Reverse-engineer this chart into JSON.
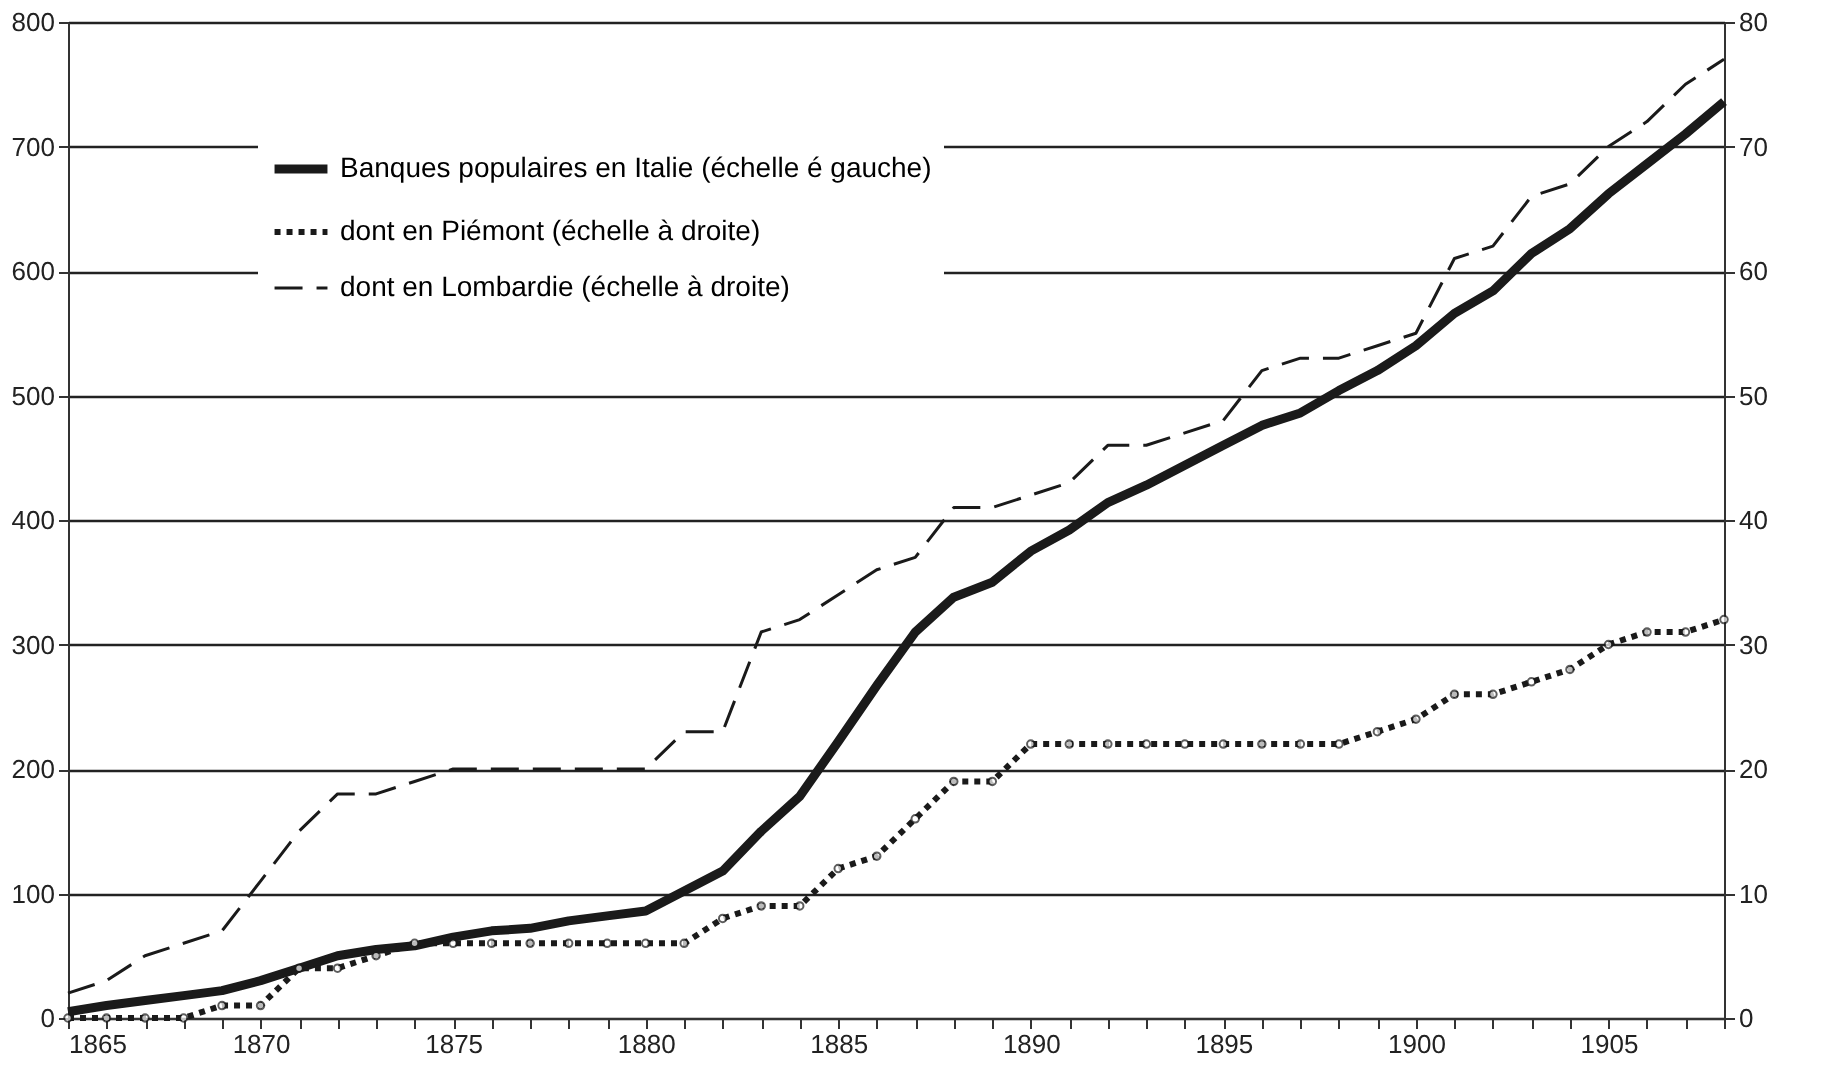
{
  "chart_data": {
    "type": "line",
    "x": [
      1865,
      1866,
      1867,
      1868,
      1869,
      1870,
      1871,
      1872,
      1873,
      1874,
      1875,
      1876,
      1877,
      1878,
      1879,
      1880,
      1881,
      1882,
      1883,
      1884,
      1885,
      1886,
      1887,
      1888,
      1889,
      1890,
      1891,
      1892,
      1893,
      1894,
      1895,
      1896,
      1897,
      1898,
      1899,
      1900,
      1901,
      1902,
      1903,
      1904,
      1905,
      1906,
      1907,
      1908
    ],
    "series": [
      {
        "name": "Banques populaires en Italie (échelle é gauche)",
        "color": "#1a1a1a",
        "line_style": "solid",
        "marker": "none",
        "values": [
          5,
          10,
          14,
          18,
          22,
          30,
          40,
          50,
          55,
          58,
          65,
          70,
          72,
          78,
          82,
          86,
          102,
          118,
          150,
          178,
          222,
          267,
          310,
          338,
          350,
          375,
          392,
          414,
          428,
          444,
          460,
          476,
          486,
          504,
          520,
          540,
          566,
          584,
          614,
          634,
          662,
          686,
          710,
          736
        ]
      },
      {
        "name": "dont en Piémont (échelle à droite)",
        "color": "#1a1a1a",
        "line_style": "dotted",
        "marker": "circle",
        "axis": "y2",
        "values": [
          0,
          0,
          0,
          0,
          1,
          1,
          4,
          4,
          5,
          6,
          6,
          6,
          6,
          6,
          6,
          6,
          6,
          8,
          9,
          9,
          12,
          13,
          16,
          19,
          19,
          22,
          22,
          22,
          22,
          22,
          22,
          22,
          22,
          22,
          23,
          24,
          26,
          26,
          27,
          28,
          30,
          31,
          31,
          32
        ]
      },
      {
        "name": "dont en Lombardie (échelle à droite)",
        "color": "#1a1a1a",
        "line_style": "dashed",
        "marker": "none",
        "axis": "y2",
        "values": [
          2,
          3,
          5,
          6,
          7,
          11,
          15,
          18,
          18,
          19,
          20,
          20,
          20,
          20,
          20,
          20,
          23,
          23,
          31,
          32,
          34,
          36,
          37,
          41,
          41,
          42,
          43,
          46,
          46,
          47,
          48,
          52,
          53,
          53,
          54,
          55,
          61,
          62,
          66,
          67,
          70,
          72,
          75,
          77
        ]
      }
    ],
    "xlim": [
      1865,
      1908
    ],
    "xticks": [
      1865,
      {
        "value": 1866,
        "label": null
      },
      {
        "value": 1867,
        "label": null
      },
      {
        "value": 1868,
        "label": null
      },
      {
        "value": 1869,
        "label": null
      },
      1870,
      {
        "value": 1871,
        "label": null
      },
      {
        "value": 1872,
        "label": null
      },
      {
        "value": 1873,
        "label": null
      },
      {
        "value": 1874,
        "label": null
      },
      1875,
      {
        "value": 1876,
        "label": null
      },
      {
        "value": 1877,
        "label": null
      },
      {
        "value": 1878,
        "label": null
      },
      {
        "value": 1879,
        "label": null
      },
      1880,
      {
        "value": 1881,
        "label": null
      },
      {
        "value": 1882,
        "label": null
      },
      {
        "value": 1883,
        "label": null
      },
      {
        "value": 1884,
        "label": null
      },
      1885,
      {
        "value": 1886,
        "label": null
      },
      {
        "value": 1887,
        "label": null
      },
      {
        "value": 1888,
        "label": null
      },
      {
        "value": 1889,
        "label": null
      },
      1890,
      {
        "value": 1891,
        "label": null
      },
      {
        "value": 1892,
        "label": null
      },
      {
        "value": 1893,
        "label": null
      },
      {
        "value": 1894,
        "label": null
      },
      1895,
      {
        "value": 1896,
        "label": null
      },
      {
        "value": 1897,
        "label": null
      },
      {
        "value": 1898,
        "label": null
      },
      {
        "value": 1899,
        "label": null
      },
      1900,
      {
        "value": 1901,
        "label": null
      },
      {
        "value": 1902,
        "label": null
      },
      {
        "value": 1903,
        "label": null
      },
      {
        "value": 1904,
        "label": null
      },
      1905,
      {
        "value": 1906,
        "label": null
      },
      {
        "value": 1907,
        "label": null
      },
      {
        "value": 1908,
        "label": null
      }
    ],
    "ylim": [
      0,
      800
    ],
    "yticks": [
      0,
      100,
      200,
      300,
      400,
      500,
      600,
      700,
      800
    ],
    "y2lim": [
      0,
      80
    ],
    "y2ticks": [
      0,
      10,
      20,
      30,
      40,
      50,
      60,
      70,
      80
    ],
    "grid": "y",
    "legend": "top left"
  }
}
